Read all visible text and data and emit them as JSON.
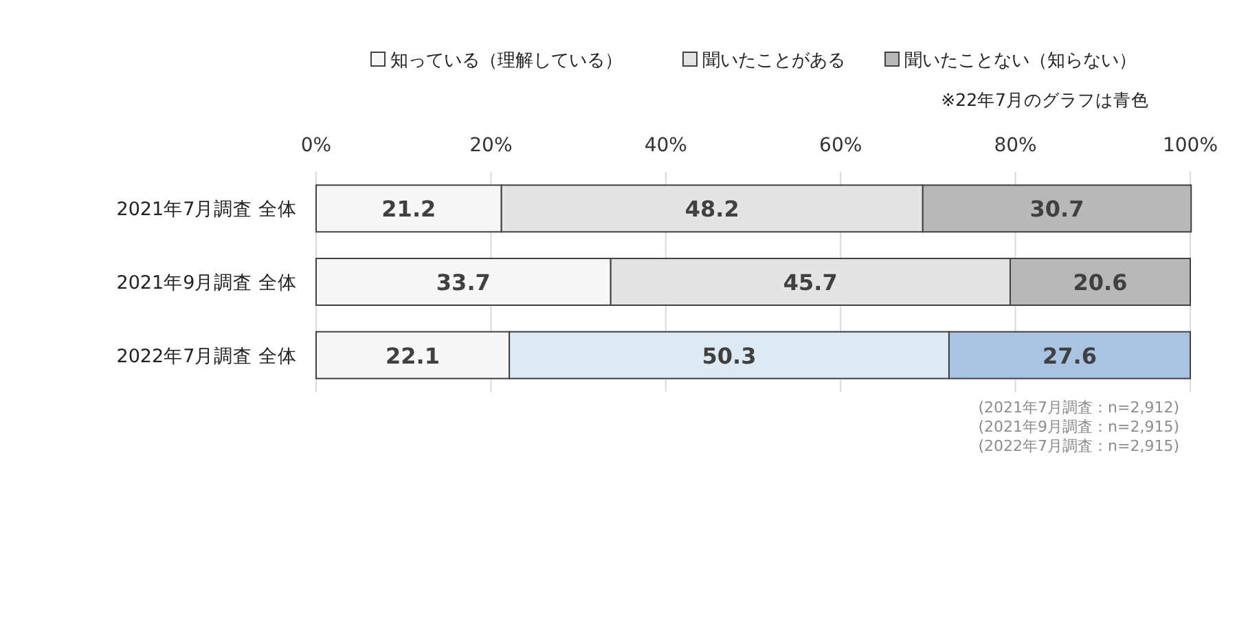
{
  "chart_data": {
    "type": "bar",
    "orientation": "horizontal",
    "stacked": true,
    "data_labels": true,
    "grid": "x",
    "legend": "top",
    "categories": [
      "2021年7月調査 全体",
      "2021年9月調査 全体",
      "2022年7月調査 全体"
    ],
    "series": [
      {
        "name": "知っている（理解している）",
        "color": "#f7f7f7",
        "colors": [
          "#f7f7f7",
          "#f7f7f7",
          "#f7f7f7"
        ],
        "values": [
          21.2,
          33.7,
          22.1
        ]
      },
      {
        "name": "聞いたことがある",
        "color": "#e4e4e4",
        "colors": [
          "#e4e4e4",
          "#e4e4e4",
          "#dde9f3"
        ],
        "values": [
          48.2,
          45.7,
          50.3
        ]
      },
      {
        "name": "聞いたことない（知らない）",
        "color": "#b8b8b8",
        "colors": [
          "#b8b8b8",
          "#b8b8b8",
          "#a9c3e3"
        ],
        "values": [
          30.7,
          20.6,
          27.6
        ]
      }
    ],
    "xlim": [
      0,
      100
    ],
    "xticks": [
      {
        "value": 0,
        "label": "0%"
      },
      {
        "value": 20,
        "label": "20%"
      },
      {
        "value": 40,
        "label": "40%"
      },
      {
        "value": 60,
        "label": "60%"
      },
      {
        "value": 80,
        "label": "80%"
      },
      {
        "value": 100,
        "label": "100%"
      }
    ],
    "annotations": [
      "※22年7月のグラフは青色",
      "(2021年7月調査：n=2,912)",
      "(2021年9月調査：n=2,915)",
      "(2022年7月調査：n=2,915)"
    ]
  }
}
